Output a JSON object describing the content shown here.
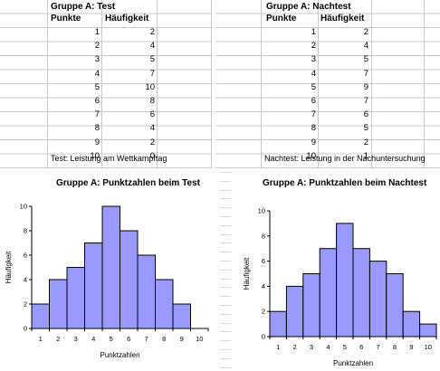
{
  "sheet_left": {
    "title": "Gruppe A: Test",
    "col_punkte": "Punkte",
    "col_haeufigkeit": "Häufigkeit",
    "rows": [
      {
        "punkte": "1",
        "h": "2"
      },
      {
        "punkte": "2",
        "h": "4"
      },
      {
        "punkte": "3",
        "h": "5"
      },
      {
        "punkte": "4",
        "h": "7"
      },
      {
        "punkte": "5",
        "h": "10"
      },
      {
        "punkte": "6",
        "h": "8"
      },
      {
        "punkte": "7",
        "h": "6"
      },
      {
        "punkte": "8",
        "h": "4"
      },
      {
        "punkte": "9",
        "h": "2"
      },
      {
        "punkte": "10",
        "h": "0"
      }
    ],
    "note": "Test: Leistung am Wettkampftag"
  },
  "sheet_right": {
    "title": "Gruppe A: Nachtest",
    "col_punkte": "Punkte",
    "col_haeufigkeit": "Häufigkeit",
    "rows": [
      {
        "punkte": "1",
        "h": "2"
      },
      {
        "punkte": "2",
        "h": "4"
      },
      {
        "punkte": "3",
        "h": "5"
      },
      {
        "punkte": "4",
        "h": "7"
      },
      {
        "punkte": "5",
        "h": "9"
      },
      {
        "punkte": "6",
        "h": "7"
      },
      {
        "punkte": "7",
        "h": "6"
      },
      {
        "punkte": "8",
        "h": "5"
      },
      {
        "punkte": "9",
        "h": "2"
      },
      {
        "punkte": "10",
        "h": "1"
      }
    ],
    "note": "Nachtest: Leistung in der Nachuntersuchung"
  },
  "colors": {
    "bar_fill": "#9999ff",
    "bar_stroke": "#000000",
    "grid": "#c8c8c8"
  },
  "chart_data": [
    {
      "type": "bar",
      "title": "Gruppe A: Punktzahlen beim Test",
      "xlabel": "Punktzahlen",
      "ylabel": "Häufigkeit",
      "categories": [
        "1",
        "2",
        "3",
        "4",
        "5",
        "6",
        "7",
        "8",
        "9",
        "10"
      ],
      "values": [
        2,
        4,
        5,
        7,
        10,
        8,
        6,
        4,
        2,
        0
      ],
      "ylim": [
        0,
        10
      ],
      "yticks": [
        "0",
        "2",
        "4",
        "6",
        "8",
        "10"
      ],
      "grid": false,
      "legend": "none"
    },
    {
      "type": "bar",
      "title": "Gruppe A: Punktzahlen beim Nachtest",
      "xlabel": "Punktzahlen",
      "ylabel": "Häufigkeit",
      "categories": [
        "1",
        "2",
        "3",
        "4",
        "5",
        "6",
        "7",
        "8",
        "9",
        "10"
      ],
      "values": [
        2,
        4,
        5,
        7,
        9,
        7,
        6,
        5,
        2,
        1
      ],
      "ylim": [
        0,
        10
      ],
      "yticks": [
        "0",
        "2",
        "4",
        "6",
        "8",
        "10"
      ],
      "grid": false,
      "legend": "none"
    }
  ]
}
